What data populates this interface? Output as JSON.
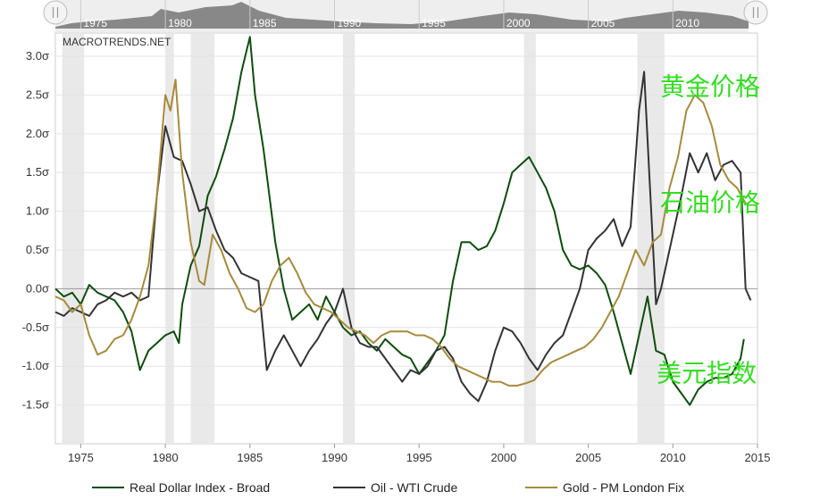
{
  "brand": "MACROTRENDS.NET",
  "navigator": {
    "ticks": [
      "1975",
      "1980",
      "1985",
      "1990",
      "1995",
      "2000",
      "2005",
      "2010"
    ],
    "left_handle_icon": "drag-handle-icon",
    "right_handle_icon": "drag-handle-icon"
  },
  "chart_data": {
    "type": "line",
    "title": "",
    "xlabel": "",
    "ylabel": "",
    "xlim": [
      1973.5,
      2015
    ],
    "ylim": [
      -2.0,
      3.3
    ],
    "x_ticks": [
      "1975",
      "1980",
      "1985",
      "1990",
      "1995",
      "2000",
      "2005",
      "2010",
      "2015"
    ],
    "y_ticks": [
      "3.0σ",
      "2.5σ",
      "2.0σ",
      "1.5σ",
      "1.0σ",
      "0.5σ",
      "0.0σ",
      "-0.5σ",
      "-1.0σ",
      "-1.5σ"
    ],
    "recessions": [
      [
        1973.9,
        1975.2
      ],
      [
        1980.0,
        1980.5
      ],
      [
        1981.5,
        1982.9
      ],
      [
        1990.5,
        1991.2
      ],
      [
        2001.2,
        2001.9
      ],
      [
        2007.9,
        2009.5
      ]
    ],
    "series": [
      {
        "name": "Real Dollar Index - Broad",
        "color": "#0e4d0e",
        "points": [
          [
            1973.5,
            0.0
          ],
          [
            1974.0,
            -0.1
          ],
          [
            1974.5,
            -0.05
          ],
          [
            1975.0,
            -0.2
          ],
          [
            1975.5,
            0.05
          ],
          [
            1976.0,
            -0.05
          ],
          [
            1976.5,
            -0.1
          ],
          [
            1977.0,
            -0.15
          ],
          [
            1977.5,
            -0.3
          ],
          [
            1978.0,
            -0.55
          ],
          [
            1978.5,
            -1.05
          ],
          [
            1979.0,
            -0.8
          ],
          [
            1979.5,
            -0.7
          ],
          [
            1980.0,
            -0.6
          ],
          [
            1980.5,
            -0.55
          ],
          [
            1980.8,
            -0.7
          ],
          [
            1981.0,
            -0.2
          ],
          [
            1981.5,
            0.3
          ],
          [
            1982.0,
            0.55
          ],
          [
            1982.5,
            1.2
          ],
          [
            1983.0,
            1.45
          ],
          [
            1983.5,
            1.8
          ],
          [
            1984.0,
            2.2
          ],
          [
            1984.5,
            2.8
          ],
          [
            1985.0,
            3.25
          ],
          [
            1985.3,
            2.5
          ],
          [
            1985.8,
            1.8
          ],
          [
            1986.5,
            0.6
          ],
          [
            1987.0,
            0.0
          ],
          [
            1987.5,
            -0.4
          ],
          [
            1988.0,
            -0.3
          ],
          [
            1988.5,
            -0.2
          ],
          [
            1989.0,
            -0.4
          ],
          [
            1989.5,
            -0.1
          ],
          [
            1990.0,
            -0.3
          ],
          [
            1990.5,
            -0.5
          ],
          [
            1991.0,
            -0.6
          ],
          [
            1991.5,
            -0.55
          ],
          [
            1992.0,
            -0.7
          ],
          [
            1992.5,
            -0.8
          ],
          [
            1993.0,
            -0.65
          ],
          [
            1993.5,
            -0.75
          ],
          [
            1994.0,
            -0.85
          ],
          [
            1994.5,
            -0.9
          ],
          [
            1995.0,
            -1.1
          ],
          [
            1995.5,
            -0.95
          ],
          [
            1996.0,
            -0.8
          ],
          [
            1996.5,
            -0.6
          ],
          [
            1997.0,
            0.1
          ],
          [
            1997.5,
            0.6
          ],
          [
            1998.0,
            0.6
          ],
          [
            1998.5,
            0.5
          ],
          [
            1999.0,
            0.55
          ],
          [
            1999.5,
            0.75
          ],
          [
            2000.0,
            1.1
          ],
          [
            2000.5,
            1.5
          ],
          [
            2001.0,
            1.6
          ],
          [
            2001.5,
            1.7
          ],
          [
            2002.0,
            1.5
          ],
          [
            2002.5,
            1.3
          ],
          [
            2003.0,
            1.0
          ],
          [
            2003.5,
            0.5
          ],
          [
            2004.0,
            0.3
          ],
          [
            2004.5,
            0.25
          ],
          [
            2005.0,
            0.3
          ],
          [
            2005.5,
            0.2
          ],
          [
            2006.0,
            0.05
          ],
          [
            2006.5,
            -0.3
          ],
          [
            2007.0,
            -0.7
          ],
          [
            2007.5,
            -1.1
          ],
          [
            2008.0,
            -0.6
          ],
          [
            2008.5,
            -0.1
          ],
          [
            2009.0,
            -0.8
          ],
          [
            2009.5,
            -0.85
          ],
          [
            2010.0,
            -1.2
          ],
          [
            2010.5,
            -1.35
          ],
          [
            2011.0,
            -1.5
          ],
          [
            2011.5,
            -1.3
          ],
          [
            2012.0,
            -1.2
          ],
          [
            2012.5,
            -1.15
          ],
          [
            2013.0,
            -1.15
          ],
          [
            2013.5,
            -1.1
          ],
          [
            2014.0,
            -0.9
          ],
          [
            2014.2,
            -0.65
          ]
        ]
      },
      {
        "name": "Oil - WTI Crude",
        "color": "#333333",
        "points": [
          [
            1973.5,
            -0.3
          ],
          [
            1974.0,
            -0.35
          ],
          [
            1974.5,
            -0.25
          ],
          [
            1975.0,
            -0.3
          ],
          [
            1975.5,
            -0.35
          ],
          [
            1976.0,
            -0.2
          ],
          [
            1976.5,
            -0.15
          ],
          [
            1977.0,
            -0.05
          ],
          [
            1977.5,
            -0.1
          ],
          [
            1978.0,
            -0.05
          ],
          [
            1978.5,
            -0.15
          ],
          [
            1979.0,
            -0.1
          ],
          [
            1979.5,
            1.2
          ],
          [
            1980.0,
            2.1
          ],
          [
            1980.5,
            1.7
          ],
          [
            1981.0,
            1.65
          ],
          [
            1981.5,
            1.35
          ],
          [
            1982.0,
            1.0
          ],
          [
            1982.5,
            1.05
          ],
          [
            1983.0,
            0.75
          ],
          [
            1983.5,
            0.5
          ],
          [
            1984.0,
            0.4
          ],
          [
            1984.5,
            0.2
          ],
          [
            1985.0,
            0.15
          ],
          [
            1985.5,
            0.1
          ],
          [
            1986.0,
            -1.05
          ],
          [
            1986.5,
            -0.8
          ],
          [
            1987.0,
            -0.6
          ],
          [
            1987.5,
            -0.8
          ],
          [
            1988.0,
            -1.0
          ],
          [
            1988.5,
            -0.8
          ],
          [
            1989.0,
            -0.65
          ],
          [
            1989.5,
            -0.45
          ],
          [
            1990.0,
            -0.3
          ],
          [
            1990.5,
            0.0
          ],
          [
            1991.0,
            -0.5
          ],
          [
            1991.5,
            -0.7
          ],
          [
            1992.0,
            -0.75
          ],
          [
            1992.5,
            -0.75
          ],
          [
            1993.0,
            -0.9
          ],
          [
            1993.5,
            -1.05
          ],
          [
            1994.0,
            -1.2
          ],
          [
            1994.5,
            -1.05
          ],
          [
            1995.0,
            -1.1
          ],
          [
            1995.5,
            -1.0
          ],
          [
            1996.0,
            -0.8
          ],
          [
            1996.5,
            -0.75
          ],
          [
            1997.0,
            -0.9
          ],
          [
            1997.5,
            -1.2
          ],
          [
            1998.0,
            -1.35
          ],
          [
            1998.5,
            -1.45
          ],
          [
            1999.0,
            -1.2
          ],
          [
            1999.5,
            -0.8
          ],
          [
            2000.0,
            -0.5
          ],
          [
            2000.5,
            -0.55
          ],
          [
            2001.0,
            -0.7
          ],
          [
            2001.5,
            -0.9
          ],
          [
            2002.0,
            -1.05
          ],
          [
            2002.5,
            -0.85
          ],
          [
            2003.0,
            -0.7
          ],
          [
            2003.5,
            -0.6
          ],
          [
            2004.0,
            -0.3
          ],
          [
            2004.5,
            0.0
          ],
          [
            2005.0,
            0.5
          ],
          [
            2005.5,
            0.65
          ],
          [
            2006.0,
            0.75
          ],
          [
            2006.5,
            0.9
          ],
          [
            2007.0,
            0.55
          ],
          [
            2007.5,
            0.8
          ],
          [
            2008.0,
            2.3
          ],
          [
            2008.3,
            2.8
          ],
          [
            2008.6,
            1.5
          ],
          [
            2009.0,
            -0.2
          ],
          [
            2009.3,
            0.0
          ],
          [
            2009.6,
            0.3
          ],
          [
            2010.0,
            0.7
          ],
          [
            2010.5,
            1.2
          ],
          [
            2011.0,
            1.75
          ],
          [
            2011.5,
            1.5
          ],
          [
            2012.0,
            1.75
          ],
          [
            2012.5,
            1.4
          ],
          [
            2013.0,
            1.6
          ],
          [
            2013.5,
            1.65
          ],
          [
            2014.0,
            1.5
          ],
          [
            2014.3,
            0.0
          ],
          [
            2014.6,
            -0.15
          ]
        ]
      },
      {
        "name": "Gold - PM London Fix",
        "color": "#a68a3c",
        "points": [
          [
            1973.5,
            -0.1
          ],
          [
            1974.0,
            -0.15
          ],
          [
            1974.5,
            -0.3
          ],
          [
            1975.0,
            -0.2
          ],
          [
            1975.5,
            -0.6
          ],
          [
            1976.0,
            -0.85
          ],
          [
            1976.5,
            -0.8
          ],
          [
            1977.0,
            -0.65
          ],
          [
            1977.5,
            -0.6
          ],
          [
            1978.0,
            -0.4
          ],
          [
            1978.5,
            -0.1
          ],
          [
            1979.0,
            0.3
          ],
          [
            1979.5,
            1.2
          ],
          [
            1980.0,
            2.5
          ],
          [
            1980.3,
            2.3
          ],
          [
            1980.6,
            2.7
          ],
          [
            1981.0,
            1.5
          ],
          [
            1981.5,
            0.6
          ],
          [
            1982.0,
            0.1
          ],
          [
            1982.3,
            0.05
          ],
          [
            1982.8,
            0.7
          ],
          [
            1983.3,
            0.5
          ],
          [
            1983.8,
            0.2
          ],
          [
            1984.3,
            0.0
          ],
          [
            1984.8,
            -0.25
          ],
          [
            1985.3,
            -0.3
          ],
          [
            1985.8,
            -0.2
          ],
          [
            1986.3,
            0.1
          ],
          [
            1986.8,
            0.3
          ],
          [
            1987.3,
            0.4
          ],
          [
            1987.8,
            0.2
          ],
          [
            1988.3,
            -0.05
          ],
          [
            1988.8,
            -0.2
          ],
          [
            1989.3,
            -0.25
          ],
          [
            1989.8,
            -0.3
          ],
          [
            1990.3,
            -0.4
          ],
          [
            1990.8,
            -0.5
          ],
          [
            1991.3,
            -0.55
          ],
          [
            1991.8,
            -0.6
          ],
          [
            1992.3,
            -0.7
          ],
          [
            1992.8,
            -0.6
          ],
          [
            1993.3,
            -0.55
          ],
          [
            1993.8,
            -0.55
          ],
          [
            1994.3,
            -0.55
          ],
          [
            1994.8,
            -0.6
          ],
          [
            1995.3,
            -0.6
          ],
          [
            1995.8,
            -0.65
          ],
          [
            1996.3,
            -0.75
          ],
          [
            1996.8,
            -0.9
          ],
          [
            1997.3,
            -1.0
          ],
          [
            1997.8,
            -1.05
          ],
          [
            1998.3,
            -1.1
          ],
          [
            1998.8,
            -1.15
          ],
          [
            1999.3,
            -1.2
          ],
          [
            1999.8,
            -1.2
          ],
          [
            2000.3,
            -1.25
          ],
          [
            2000.8,
            -1.25
          ],
          [
            2001.3,
            -1.22
          ],
          [
            2001.8,
            -1.18
          ],
          [
            2002.3,
            -1.05
          ],
          [
            2002.8,
            -0.95
          ],
          [
            2003.3,
            -0.9
          ],
          [
            2003.8,
            -0.85
          ],
          [
            2004.3,
            -0.8
          ],
          [
            2004.8,
            -0.75
          ],
          [
            2005.3,
            -0.65
          ],
          [
            2005.8,
            -0.5
          ],
          [
            2006.3,
            -0.3
          ],
          [
            2006.8,
            -0.1
          ],
          [
            2007.3,
            0.2
          ],
          [
            2007.8,
            0.5
          ],
          [
            2008.3,
            0.3
          ],
          [
            2008.8,
            0.6
          ],
          [
            2009.3,
            0.7
          ],
          [
            2009.8,
            1.3
          ],
          [
            2010.3,
            1.7
          ],
          [
            2010.8,
            2.3
          ],
          [
            2011.3,
            2.5
          ],
          [
            2011.8,
            2.4
          ],
          [
            2012.3,
            2.1
          ],
          [
            2012.8,
            1.6
          ],
          [
            2013.3,
            1.4
          ],
          [
            2013.8,
            1.3
          ],
          [
            2014.3,
            1.1
          ]
        ]
      }
    ],
    "annotations": [
      {
        "text": "黄金价格",
        "anchor": [
          2012.2,
          2.5
        ]
      },
      {
        "text": "石油价格",
        "anchor": [
          2012.2,
          1.0
        ]
      },
      {
        "text": "美元指数",
        "anchor": [
          2012.0,
          -1.2
        ]
      }
    ],
    "legend_position": "bottom"
  }
}
